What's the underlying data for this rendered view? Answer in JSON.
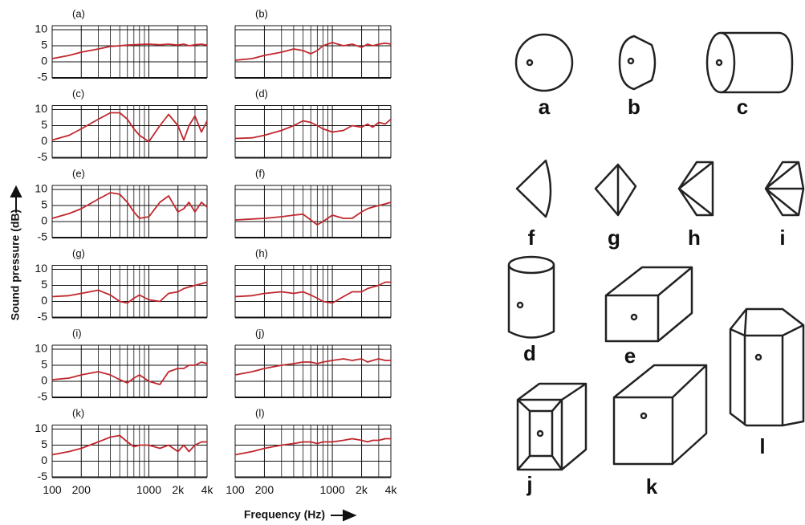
{
  "chart_data": [
    {
      "type": "line",
      "title": "(a)",
      "x": [
        100,
        150,
        200,
        300,
        400,
        500,
        600,
        700,
        800,
        1000,
        1300,
        1600,
        2000,
        2300,
        2600,
        3000,
        3500,
        4000
      ],
      "values": [
        1,
        2,
        3,
        4,
        4.8,
        5,
        5.2,
        5.3,
        5.4,
        5.5,
        5.3,
        5.5,
        5.2,
        5.5,
        5,
        5.3,
        5.5,
        5.2
      ],
      "color": "#c0272d",
      "xscale": "log",
      "xlim": [
        100,
        4000
      ],
      "xticks": [
        100,
        200,
        1000,
        {
          "value": 2000,
          "label": "2k"
        },
        {
          "value": 4000,
          "label": "4k"
        }
      ],
      "xminor": [
        300,
        400,
        500,
        600,
        700,
        800,
        900,
        3000
      ],
      "ylim": [
        -5,
        10
      ],
      "yticks": [
        -5,
        0,
        5,
        10
      ],
      "grid": true
    },
    {
      "type": "line",
      "title": "(b)",
      "x": [
        100,
        150,
        200,
        300,
        400,
        500,
        600,
        700,
        800,
        1000,
        1300,
        1600,
        2000,
        2300,
        2600,
        3000,
        3500,
        4000
      ],
      "values": [
        0.5,
        1,
        2,
        3,
        4,
        3.5,
        2.5,
        3.5,
        5,
        6,
        5,
        5.5,
        4.5,
        5.5,
        5,
        5.5,
        5.8,
        5.5
      ],
      "color": "#c0272d",
      "xscale": "log",
      "xlim": [
        100,
        4000
      ],
      "xticks": [
        100,
        200,
        1000,
        {
          "value": 2000,
          "label": "2k"
        },
        {
          "value": 4000,
          "label": "4k"
        }
      ],
      "xminor": [
        300,
        400,
        500,
        600,
        700,
        800,
        900,
        3000
      ],
      "ylim": [
        -5,
        10
      ],
      "yticks": [
        -5,
        0,
        5,
        10
      ],
      "grid": true
    },
    {
      "type": "line",
      "title": "(c)",
      "x": [
        100,
        150,
        200,
        300,
        400,
        500,
        600,
        700,
        800,
        1000,
        1300,
        1600,
        2000,
        2300,
        2600,
        3000,
        3500,
        4000
      ],
      "values": [
        0.5,
        2,
        4,
        7,
        9,
        9,
        7,
        4,
        2,
        0,
        5,
        8.5,
        5,
        0.5,
        5,
        8,
        3,
        6.5
      ],
      "color": "#c0272d",
      "xscale": "log",
      "xlim": [
        100,
        4000
      ],
      "xticks": [
        100,
        200,
        1000,
        {
          "value": 2000,
          "label": "2k"
        },
        {
          "value": 4000,
          "label": "4k"
        }
      ],
      "xminor": [
        300,
        400,
        500,
        600,
        700,
        800,
        900,
        3000
      ],
      "ylim": [
        -5,
        10
      ],
      "yticks": [
        -5,
        0,
        5,
        10
      ],
      "grid": true
    },
    {
      "type": "line",
      "title": "(d)",
      "x": [
        100,
        150,
        200,
        300,
        400,
        500,
        600,
        700,
        800,
        1000,
        1300,
        1600,
        2000,
        2300,
        2600,
        3000,
        3500,
        4000
      ],
      "values": [
        1,
        1.2,
        2,
        3.5,
        5,
        6.5,
        6,
        5,
        4,
        3,
        3.5,
        5,
        4.5,
        5.5,
        4.5,
        6,
        5.5,
        7
      ],
      "color": "#c0272d",
      "xscale": "log",
      "xlim": [
        100,
        4000
      ],
      "xticks": [
        100,
        200,
        1000,
        {
          "value": 2000,
          "label": "2k"
        },
        {
          "value": 4000,
          "label": "4k"
        }
      ],
      "xminor": [
        300,
        400,
        500,
        600,
        700,
        800,
        900,
        3000
      ],
      "ylim": [
        -5,
        10
      ],
      "yticks": [
        -5,
        0,
        5,
        10
      ],
      "grid": true
    },
    {
      "type": "line",
      "title": "(e)",
      "x": [
        100,
        150,
        200,
        300,
        400,
        500,
        600,
        700,
        800,
        1000,
        1300,
        1600,
        2000,
        2300,
        2600,
        3000,
        3500,
        4000
      ],
      "values": [
        1,
        2.5,
        4,
        7,
        9,
        8.5,
        6,
        3,
        1,
        1.5,
        6,
        8,
        3,
        4,
        6,
        3,
        6,
        4.5
      ],
      "color": "#c0272d",
      "xscale": "log",
      "xlim": [
        100,
        4000
      ],
      "xticks": [
        100,
        200,
        1000,
        {
          "value": 2000,
          "label": "2k"
        },
        {
          "value": 4000,
          "label": "4k"
        }
      ],
      "xminor": [
        300,
        400,
        500,
        600,
        700,
        800,
        900,
        3000
      ],
      "ylim": [
        -5,
        10
      ],
      "yticks": [
        -5,
        0,
        5,
        10
      ],
      "grid": true
    },
    {
      "type": "line",
      "title": "(f)",
      "x": [
        100,
        150,
        200,
        300,
        400,
        500,
        600,
        700,
        800,
        1000,
        1300,
        1600,
        2000,
        2300,
        2600,
        3000,
        3500,
        4000
      ],
      "values": [
        0.5,
        0.8,
        1,
        1.5,
        2,
        2.3,
        0.5,
        -1,
        0,
        2,
        1,
        1,
        3,
        4,
        4.5,
        5,
        5.5,
        6
      ],
      "color": "#c0272d",
      "xscale": "log",
      "xlim": [
        100,
        4000
      ],
      "xticks": [
        100,
        200,
        1000,
        {
          "value": 2000,
          "label": "2k"
        },
        {
          "value": 4000,
          "label": "4k"
        }
      ],
      "xminor": [
        300,
        400,
        500,
        600,
        700,
        800,
        900,
        3000
      ],
      "ylim": [
        -5,
        10
      ],
      "yticks": [
        -5,
        0,
        5,
        10
      ],
      "grid": true
    },
    {
      "type": "line",
      "title": "(g)",
      "x": [
        100,
        150,
        200,
        300,
        400,
        500,
        600,
        700,
        800,
        1000,
        1300,
        1600,
        2000,
        2300,
        2600,
        3000,
        3500,
        4000
      ],
      "values": [
        1.5,
        1.8,
        2.5,
        3.5,
        2,
        0,
        -0.5,
        1,
        2,
        0.5,
        0,
        2.5,
        3,
        4,
        4.5,
        5,
        5.5,
        6
      ],
      "color": "#c0272d",
      "xscale": "log",
      "xlim": [
        100,
        4000
      ],
      "xticks": [
        100,
        200,
        1000,
        {
          "value": 2000,
          "label": "2k"
        },
        {
          "value": 4000,
          "label": "4k"
        }
      ],
      "xminor": [
        300,
        400,
        500,
        600,
        700,
        800,
        900,
        3000
      ],
      "ylim": [
        -5,
        10
      ],
      "yticks": [
        -5,
        0,
        5,
        10
      ],
      "grid": true
    },
    {
      "type": "line",
      "title": "(h)",
      "x": [
        100,
        150,
        200,
        300,
        400,
        500,
        600,
        700,
        800,
        1000,
        1300,
        1600,
        2000,
        2300,
        2600,
        3000,
        3500,
        4000
      ],
      "values": [
        1.5,
        1.8,
        2.5,
        3,
        2.5,
        3,
        2,
        1,
        0,
        -0.5,
        1.5,
        3,
        3,
        4,
        4.5,
        5,
        6,
        6
      ],
      "color": "#c0272d",
      "xscale": "log",
      "xlim": [
        100,
        4000
      ],
      "xticks": [
        100,
        200,
        1000,
        {
          "value": 2000,
          "label": "2k"
        },
        {
          "value": 4000,
          "label": "4k"
        }
      ],
      "xminor": [
        300,
        400,
        500,
        600,
        700,
        800,
        900,
        3000
      ],
      "ylim": [
        -5,
        10
      ],
      "yticks": [
        -5,
        0,
        5,
        10
      ],
      "grid": true
    },
    {
      "type": "line",
      "title": "(i)",
      "x": [
        100,
        150,
        200,
        300,
        400,
        500,
        600,
        700,
        800,
        1000,
        1300,
        1600,
        2000,
        2300,
        2600,
        3000,
        3500,
        4000
      ],
      "values": [
        0.5,
        1,
        2,
        3,
        2,
        0.5,
        -0.5,
        1,
        2,
        0,
        -1,
        3,
        4,
        4,
        5,
        5,
        6,
        5.5
      ],
      "color": "#c0272d",
      "xscale": "log",
      "xlim": [
        100,
        4000
      ],
      "xticks": [
        100,
        200,
        1000,
        {
          "value": 2000,
          "label": "2k"
        },
        {
          "value": 4000,
          "label": "4k"
        }
      ],
      "xminor": [
        300,
        400,
        500,
        600,
        700,
        800,
        900,
        3000
      ],
      "ylim": [
        -5,
        10
      ],
      "yticks": [
        -5,
        0,
        5,
        10
      ],
      "grid": true
    },
    {
      "type": "line",
      "title": "(j)",
      "x": [
        100,
        150,
        200,
        300,
        400,
        500,
        600,
        700,
        800,
        1000,
        1300,
        1600,
        2000,
        2300,
        2600,
        3000,
        3500,
        4000
      ],
      "values": [
        2,
        3,
        4,
        5,
        5.5,
        6,
        6,
        5.5,
        6,
        6.5,
        7,
        6.5,
        7,
        6,
        6.5,
        7,
        6.5,
        6.5
      ],
      "color": "#c0272d",
      "xscale": "log",
      "xlim": [
        100,
        4000
      ],
      "xticks": [
        100,
        200,
        1000,
        {
          "value": 2000,
          "label": "2k"
        },
        {
          "value": 4000,
          "label": "4k"
        }
      ],
      "xminor": [
        300,
        400,
        500,
        600,
        700,
        800,
        900,
        3000
      ],
      "ylim": [
        -5,
        10
      ],
      "yticks": [
        -5,
        0,
        5,
        10
      ],
      "grid": true
    },
    {
      "type": "line",
      "title": "(k)",
      "x": [
        100,
        150,
        200,
        300,
        400,
        500,
        600,
        700,
        800,
        1000,
        1300,
        1600,
        2000,
        2300,
        2600,
        3000,
        3500,
        4000
      ],
      "values": [
        2,
        3,
        4,
        6,
        7.5,
        8,
        6,
        4.5,
        5,
        5,
        4,
        5,
        3,
        5,
        3,
        5,
        6,
        6
      ],
      "color": "#c0272d",
      "xscale": "log",
      "xlim": [
        100,
        4000
      ],
      "xticks": [
        100,
        200,
        1000,
        {
          "value": 2000,
          "label": "2k"
        },
        {
          "value": 4000,
          "label": "4k"
        }
      ],
      "xminor": [
        300,
        400,
        500,
        600,
        700,
        800,
        900,
        3000
      ],
      "ylim": [
        -5,
        10
      ],
      "yticks": [
        -5,
        0,
        5,
        10
      ],
      "grid": true
    },
    {
      "type": "line",
      "title": "(l)",
      "x": [
        100,
        150,
        200,
        300,
        400,
        500,
        600,
        700,
        800,
        1000,
        1300,
        1600,
        2000,
        2300,
        2600,
        3000,
        3500,
        4000
      ],
      "values": [
        2,
        3,
        4,
        5,
        5.5,
        6,
        6,
        5.5,
        6,
        6,
        6.5,
        7,
        6.5,
        6,
        6.5,
        6.5,
        7,
        7
      ],
      "color": "#c0272d",
      "xscale": "log",
      "xlim": [
        100,
        4000
      ],
      "xticks": [
        100,
        200,
        1000,
        {
          "value": 2000,
          "label": "2k"
        },
        {
          "value": 4000,
          "label": "4k"
        }
      ],
      "xminor": [
        300,
        400,
        500,
        600,
        700,
        800,
        900,
        3000
      ],
      "ylim": [
        -5,
        10
      ],
      "yticks": [
        -5,
        0,
        5,
        10
      ],
      "grid": true
    }
  ],
  "figure": {
    "ylabel": "Sound pressure (dB)",
    "xlabel": "Frequency (Hz)"
  },
  "diagram": {
    "labels": [
      "a",
      "b",
      "c",
      "f",
      "g",
      "h",
      "i",
      "d",
      "e",
      "l",
      "j",
      "k"
    ]
  }
}
